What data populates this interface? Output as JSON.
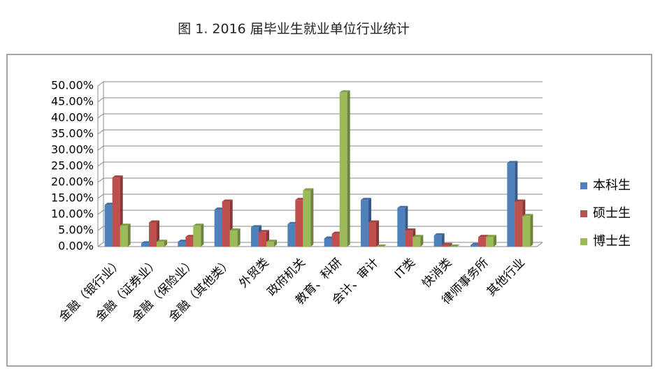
{
  "chart_data": {
    "type": "bar",
    "title": "图 1. 2016  届毕业生就业单位行业统计",
    "categories": [
      "金融（银行业）",
      "金融（证券业）",
      "金融（保险业）",
      "金融（其他类）",
      "外贸类",
      "政府机关",
      "教育、科研",
      "会计、审计",
      "IT类",
      "快消类",
      "律师事务所",
      "其他行业"
    ],
    "series": [
      {
        "name": "本科生",
        "color": "#4f81bd",
        "values": [
          13,
          1,
          1.5,
          11.5,
          6,
          7,
          2.5,
          14.5,
          12,
          3.5,
          0.5,
          26
        ]
      },
      {
        "name": "硕士生",
        "color": "#c0504d",
        "values": [
          21.5,
          7.5,
          3,
          14,
          4.5,
          14.5,
          4,
          7.5,
          5,
          0.5,
          3,
          14
        ]
      },
      {
        "name": "博士生",
        "color": "#9bbb59",
        "values": [
          6.5,
          1.5,
          6.5,
          5,
          1.5,
          17.5,
          48,
          0,
          3,
          0,
          3,
          9.5
        ]
      }
    ],
    "ylim": [
      0,
      50
    ],
    "yticks": [
      {
        "value": 0,
        "label": "0.00%"
      },
      {
        "value": 5,
        "label": "5.00%"
      },
      {
        "value": 10,
        "label": "10.00%"
      },
      {
        "value": 15,
        "label": "15.00%"
      },
      {
        "value": 20,
        "label": "20.00%"
      },
      {
        "value": 25,
        "label": "25.00%"
      },
      {
        "value": 30,
        "label": "30.00%"
      },
      {
        "value": 35,
        "label": "35.00%"
      },
      {
        "value": 40,
        "label": "40.00%"
      },
      {
        "value": 45,
        "label": "45.00%"
      },
      {
        "value": 50,
        "label": "50.00%"
      }
    ],
    "grid": true,
    "legend": "right"
  }
}
